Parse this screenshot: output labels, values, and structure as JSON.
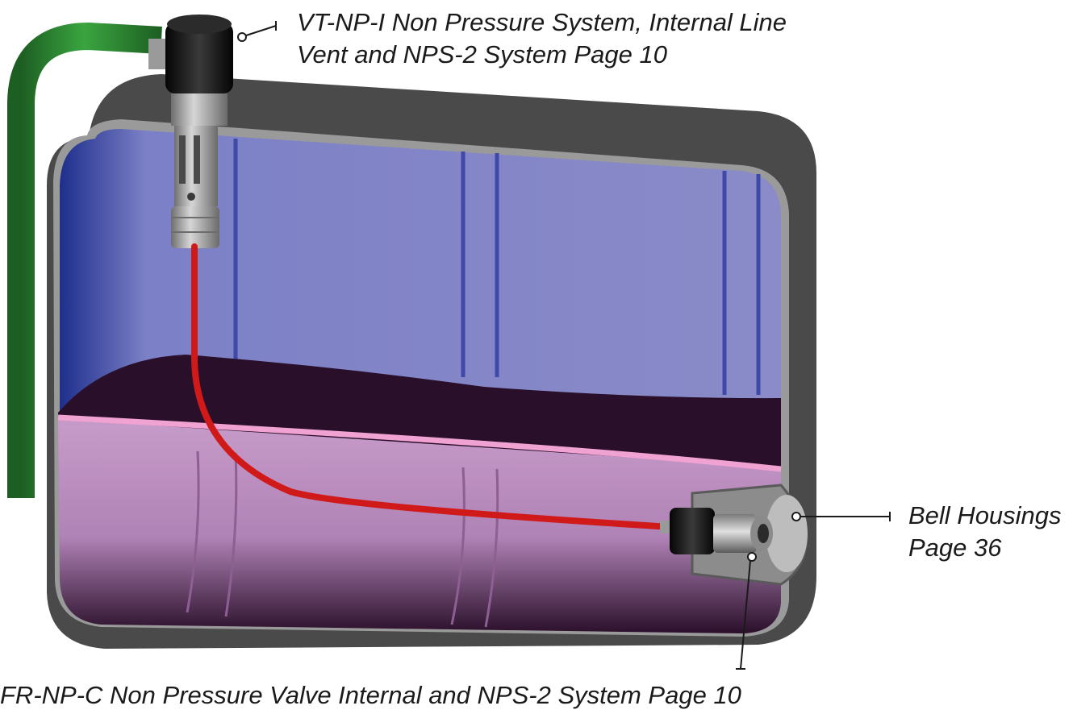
{
  "callouts": {
    "vent": {
      "line1": "VT-NP-I Non Pressure System, Internal Line",
      "line2": "Vent and NPS-2 System Page 10"
    },
    "bell": {
      "line1": "Bell Housings",
      "line2": "Page 36"
    },
    "valve": {
      "line1": "FR-NP-C Non Pressure Valve Internal and NPS-2 System Page 10"
    }
  },
  "colors": {
    "tank_shell": "#4a4a4a",
    "tank_rim": "#9a9a9a",
    "tank_air": "#8486c4",
    "fluid_top": "#2a0f2a",
    "fluid_body": "#b98ab9",
    "vent_pipe": "#2e8b34",
    "red_line": "#d01a1a",
    "fitting_black": "#151515",
    "fitting_silver": "#a8a8a8"
  },
  "icons": {
    "vent": "vent-valve-icon",
    "valve": "float-valve-icon",
    "bell": "bell-housing-icon"
  }
}
